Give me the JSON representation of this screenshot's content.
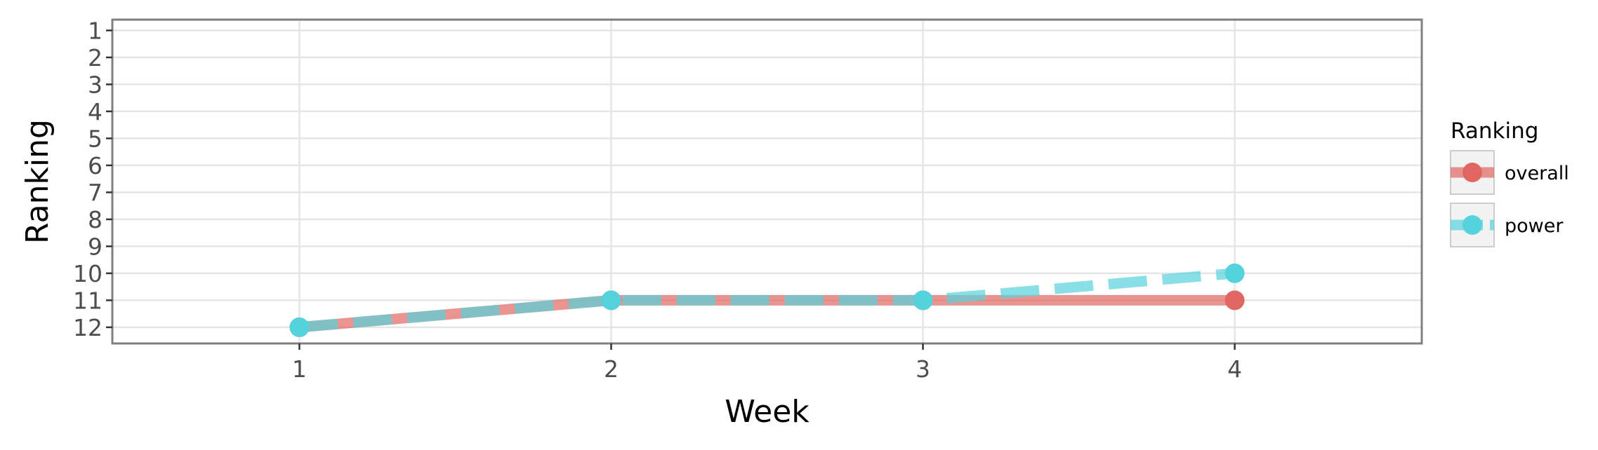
{
  "chart_data": {
    "type": "line",
    "title": "",
    "xlabel": "Week",
    "ylabel": "Ranking",
    "x": [
      1,
      2,
      3,
      4
    ],
    "xlim": [
      0.4,
      4.6
    ],
    "ylim": [
      12.6,
      0.6
    ],
    "y_reversed": true,
    "x_ticks": [
      1,
      2,
      3,
      4
    ],
    "y_ticks": [
      1,
      2,
      3,
      4,
      5,
      6,
      7,
      8,
      9,
      10,
      11,
      12
    ],
    "grid": true,
    "legend": {
      "title": "Ranking",
      "position": "right"
    },
    "series": [
      {
        "name": "overall",
        "values": [
          12,
          11,
          11,
          11
        ],
        "color": "#E06661",
        "line_style": "solid"
      },
      {
        "name": "power",
        "values": [
          12,
          11,
          11,
          10
        ],
        "color": "#55D3DC",
        "line_style": "dashed"
      }
    ]
  }
}
